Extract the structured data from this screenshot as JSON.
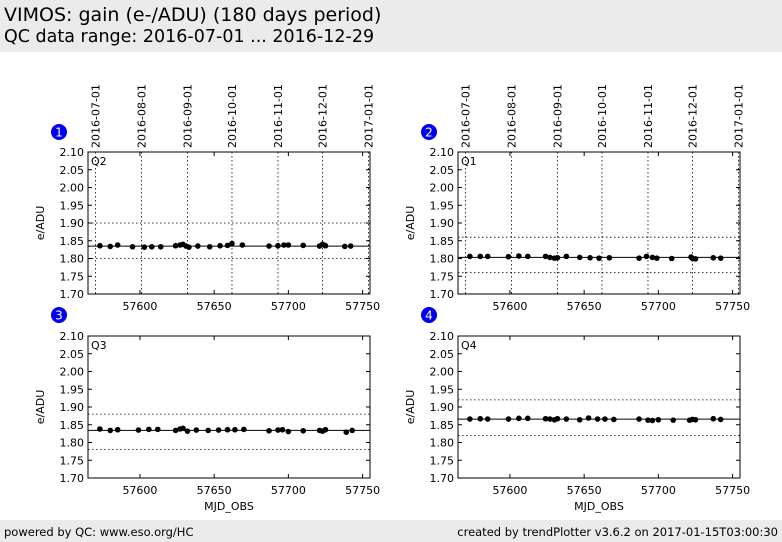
{
  "header": {
    "title": "VIMOS: gain (e-/ADU) (180 days period)",
    "subtitle": "QC data range: 2016-07-01 ... 2016-12-29"
  },
  "footer": {
    "left": "powered by QC: www.eso.org/HC",
    "right": "created by trendPlotter v3.6.2 on 2017-01-15T03:00:30"
  },
  "colors": {
    "badge": "#0000ee",
    "points": "#000000",
    "mean_line": "#000000"
  },
  "chart_data": [
    {
      "type": "scatter",
      "panel_number": "1",
      "label": "Q2",
      "xlabel": "",
      "ylabel": "e/ADU",
      "xlim": [
        57565,
        57755
      ],
      "ylim": [
        1.7,
        2.1
      ],
      "x_ticks": [
        57600,
        57650,
        57700,
        57750
      ],
      "y_ticks": [
        1.7,
        1.75,
        1.8,
        1.85,
        1.9,
        1.95,
        2.0,
        2.05,
        2.1
      ],
      "date_ticks": [
        {
          "label": "2016-07-01",
          "mjd": 57570
        },
        {
          "label": "2016-08-01",
          "mjd": 57601
        },
        {
          "label": "2016-09-01",
          "mjd": 57632
        },
        {
          "label": "2016-10-01",
          "mjd": 57662
        },
        {
          "label": "2016-11-01",
          "mjd": 57693
        },
        {
          "label": "2016-12-01",
          "mjd": 57723
        },
        {
          "label": "2017-01-01",
          "mjd": 57754
        }
      ],
      "mean": 1.835,
      "band": [
        1.8,
        1.9
      ],
      "points": [
        [
          57573,
          1.836
        ],
        [
          57580,
          1.834
        ],
        [
          57585,
          1.838
        ],
        [
          57595,
          1.833
        ],
        [
          57603,
          1.832
        ],
        [
          57608,
          1.833
        ],
        [
          57614,
          1.833
        ],
        [
          57624,
          1.836
        ],
        [
          57627,
          1.838
        ],
        [
          57629,
          1.84
        ],
        [
          57631,
          1.835
        ],
        [
          57633,
          1.832
        ],
        [
          57639,
          1.835
        ],
        [
          57647,
          1.833
        ],
        [
          57654,
          1.836
        ],
        [
          57659,
          1.837
        ],
        [
          57662,
          1.842
        ],
        [
          57669,
          1.838
        ],
        [
          57687,
          1.835
        ],
        [
          57693,
          1.836
        ],
        [
          57697,
          1.838
        ],
        [
          57700,
          1.838
        ],
        [
          57710,
          1.837
        ],
        [
          57721,
          1.835
        ],
        [
          57723,
          1.84
        ],
        [
          57724,
          1.838
        ],
        [
          57725,
          1.836
        ],
        [
          57738,
          1.834
        ],
        [
          57742,
          1.835
        ]
      ]
    },
    {
      "type": "scatter",
      "panel_number": "2",
      "label": "Q1",
      "xlabel": "",
      "ylabel": "e/ADU",
      "xlim": [
        57565,
        57755
      ],
      "ylim": [
        1.7,
        2.1
      ],
      "x_ticks": [
        57600,
        57650,
        57700,
        57750
      ],
      "y_ticks": [
        1.7,
        1.75,
        1.8,
        1.85,
        1.9,
        1.95,
        2.0,
        2.05,
        2.1
      ],
      "date_ticks": [
        {
          "label": "2016-07-01",
          "mjd": 57570
        },
        {
          "label": "2016-08-01",
          "mjd": 57601
        },
        {
          "label": "2016-09-01",
          "mjd": 57632
        },
        {
          "label": "2016-10-01",
          "mjd": 57662
        },
        {
          "label": "2016-11-01",
          "mjd": 57693
        },
        {
          "label": "2016-12-01",
          "mjd": 57723
        },
        {
          "label": "2017-01-01",
          "mjd": 57754
        }
      ],
      "mean": 1.803,
      "band": [
        1.76,
        1.86
      ],
      "points": [
        [
          57573,
          1.806
        ],
        [
          57580,
          1.806
        ],
        [
          57585,
          1.806
        ],
        [
          57599,
          1.805
        ],
        [
          57606,
          1.807
        ],
        [
          57612,
          1.806
        ],
        [
          57624,
          1.806
        ],
        [
          57627,
          1.803
        ],
        [
          57630,
          1.801
        ],
        [
          57632,
          1.802
        ],
        [
          57638,
          1.806
        ],
        [
          57647,
          1.803
        ],
        [
          57654,
          1.802
        ],
        [
          57660,
          1.801
        ],
        [
          57667,
          1.802
        ],
        [
          57687,
          1.801
        ],
        [
          57692,
          1.806
        ],
        [
          57696,
          1.803
        ],
        [
          57699,
          1.801
        ],
        [
          57709,
          1.8
        ],
        [
          57722,
          1.804
        ],
        [
          57723,
          1.8
        ],
        [
          57725,
          1.799
        ],
        [
          57737,
          1.802
        ],
        [
          57742,
          1.801
        ]
      ]
    },
    {
      "type": "scatter",
      "panel_number": "3",
      "label": "Q3",
      "xlabel": "MJD_OBS",
      "ylabel": "e/ADU",
      "xlim": [
        57565,
        57755
      ],
      "ylim": [
        1.7,
        2.1
      ],
      "x_ticks": [
        57600,
        57650,
        57700,
        57750
      ],
      "y_ticks": [
        1.7,
        1.75,
        1.8,
        1.85,
        1.9,
        1.95,
        2.0,
        2.05,
        2.1
      ],
      "mean": 1.834,
      "band": [
        1.78,
        1.88
      ],
      "points": [
        [
          57573,
          1.838
        ],
        [
          57580,
          1.834
        ],
        [
          57585,
          1.836
        ],
        [
          57599,
          1.835
        ],
        [
          57606,
          1.837
        ],
        [
          57612,
          1.837
        ],
        [
          57624,
          1.834
        ],
        [
          57627,
          1.838
        ],
        [
          57629,
          1.84
        ],
        [
          57632,
          1.832
        ],
        [
          57638,
          1.835
        ],
        [
          57646,
          1.834
        ],
        [
          57653,
          1.835
        ],
        [
          57659,
          1.836
        ],
        [
          57664,
          1.836
        ],
        [
          57670,
          1.837
        ],
        [
          57687,
          1.833
        ],
        [
          57693,
          1.835
        ],
        [
          57696,
          1.836
        ],
        [
          57700,
          1.831
        ],
        [
          57710,
          1.833
        ],
        [
          57721,
          1.834
        ],
        [
          57723,
          1.832
        ],
        [
          57725,
          1.836
        ],
        [
          57739,
          1.829
        ],
        [
          57743,
          1.834
        ]
      ]
    },
    {
      "type": "scatter",
      "panel_number": "4",
      "label": "Q4",
      "xlabel": "MJD_OBS",
      "ylabel": "e/ADU",
      "xlim": [
        57565,
        57755
      ],
      "ylim": [
        1.7,
        2.1
      ],
      "x_ticks": [
        57600,
        57650,
        57700,
        57750
      ],
      "y_ticks": [
        1.7,
        1.75,
        1.8,
        1.85,
        1.9,
        1.95,
        2.0,
        2.05,
        2.1
      ],
      "mean": 1.866,
      "band": [
        1.82,
        1.92
      ],
      "points": [
        [
          57573,
          1.866
        ],
        [
          57580,
          1.867
        ],
        [
          57585,
          1.866
        ],
        [
          57599,
          1.866
        ],
        [
          57606,
          1.868
        ],
        [
          57612,
          1.868
        ],
        [
          57624,
          1.867
        ],
        [
          57627,
          1.866
        ],
        [
          57630,
          1.864
        ],
        [
          57632,
          1.867
        ],
        [
          57638,
          1.866
        ],
        [
          57647,
          1.864
        ],
        [
          57653,
          1.869
        ],
        [
          57659,
          1.866
        ],
        [
          57664,
          1.866
        ],
        [
          57670,
          1.865
        ],
        [
          57687,
          1.866
        ],
        [
          57693,
          1.863
        ],
        [
          57696,
          1.862
        ],
        [
          57700,
          1.864
        ],
        [
          57710,
          1.863
        ],
        [
          57721,
          1.863
        ],
        [
          57723,
          1.865
        ],
        [
          57725,
          1.864
        ],
        [
          57737,
          1.867
        ],
        [
          57742,
          1.865
        ]
      ]
    }
  ]
}
